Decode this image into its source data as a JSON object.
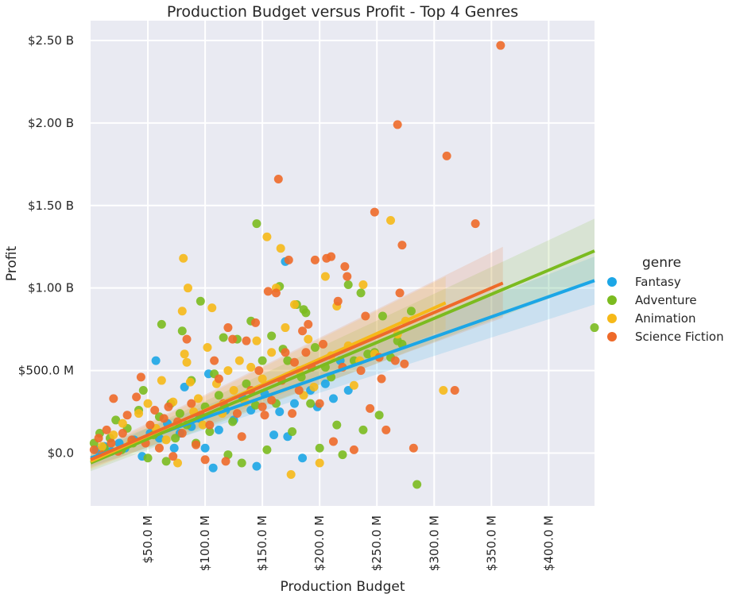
{
  "chart_data": {
    "type": "scatter",
    "title": "Production Budget versus Profit - Top 4 Genres",
    "xlabel": "Production Budget",
    "ylabel": "Profit",
    "xlim": [
      0,
      440
    ],
    "ylim": [
      -320,
      2620
    ],
    "x_unit": "millions USD",
    "y_unit": "millions USD",
    "grid": true,
    "background": "#e9eaf2",
    "x_ticks": [
      {
        "value": 50,
        "label": "$50.0 M"
      },
      {
        "value": 100,
        "label": "$100.0 M"
      },
      {
        "value": 150,
        "label": "$150.0 M"
      },
      {
        "value": 200,
        "label": "$200.0 M"
      },
      {
        "value": 250,
        "label": "$250.0 M"
      },
      {
        "value": 300,
        "label": "$300.0 M"
      },
      {
        "value": 350,
        "label": "$350.0 M"
      },
      {
        "value": 400,
        "label": "$400.0 M"
      }
    ],
    "y_ticks": [
      {
        "value": 0,
        "label": "$0.0"
      },
      {
        "value": 500,
        "label": "$500.0 M"
      },
      {
        "value": 1000,
        "label": "$1.00 B"
      },
      {
        "value": 1500,
        "label": "$1.50 B"
      },
      {
        "value": 2000,
        "label": "$2.00 B"
      },
      {
        "value": 2500,
        "label": "$2.50 B"
      }
    ],
    "legend": {
      "title": "genre",
      "position": "right"
    },
    "series": [
      {
        "name": "Fantasy",
        "color": "#1ca6e6",
        "points": [
          [
            5,
            20
          ],
          [
            12,
            40
          ],
          [
            18,
            10
          ],
          [
            25,
            60
          ],
          [
            30,
            30
          ],
          [
            38,
            80
          ],
          [
            45,
            -20
          ],
          [
            52,
            120
          ],
          [
            57,
            560
          ],
          [
            60,
            90
          ],
          [
            67,
            180
          ],
          [
            73,
            30
          ],
          [
            78,
            120
          ],
          [
            82,
            400
          ],
          [
            88,
            160
          ],
          [
            95,
            210
          ],
          [
            100,
            30
          ],
          [
            103,
            480
          ],
          [
            107,
            -90
          ],
          [
            112,
            140
          ],
          [
            118,
            260
          ],
          [
            125,
            200
          ],
          [
            133,
            330
          ],
          [
            140,
            260
          ],
          [
            145,
            -80
          ],
          [
            152,
            360
          ],
          [
            160,
            110
          ],
          [
            165,
            250
          ],
          [
            170,
            1160
          ],
          [
            172,
            100
          ],
          [
            178,
            300
          ],
          [
            185,
            -30
          ],
          [
            192,
            380
          ],
          [
            198,
            280
          ],
          [
            205,
            420
          ],
          [
            212,
            330
          ],
          [
            218,
            560
          ],
          [
            225,
            380
          ]
        ],
        "fit": {
          "x": [
            0,
            440
          ],
          "y": [
            -30,
            1045
          ]
        },
        "band": {
          "lower": [
            -80,
            900
          ],
          "upper": [
            20,
            1190
          ]
        }
      },
      {
        "name": "Adventure",
        "color": "#7bbb1f",
        "points": [
          [
            3,
            60
          ],
          [
            8,
            120
          ],
          [
            12,
            30
          ],
          [
            17,
            90
          ],
          [
            22,
            200
          ],
          [
            27,
            20
          ],
          [
            32,
            150
          ],
          [
            37,
            60
          ],
          [
            42,
            260
          ],
          [
            46,
            380
          ],
          [
            50,
            -30
          ],
          [
            55,
            110
          ],
          [
            60,
            220
          ],
          [
            62,
            780
          ],
          [
            66,
            -50
          ],
          [
            70,
            300
          ],
          [
            74,
            90
          ],
          [
            78,
            240
          ],
          [
            80,
            740
          ],
          [
            84,
            170
          ],
          [
            88,
            440
          ],
          [
            92,
            60
          ],
          [
            96,
            920
          ],
          [
            100,
            280
          ],
          [
            104,
            130
          ],
          [
            108,
            480
          ],
          [
            112,
            350
          ],
          [
            116,
            700
          ],
          [
            120,
            -10
          ],
          [
            124,
            190
          ],
          [
            128,
            690
          ],
          [
            132,
            -60
          ],
          [
            136,
            420
          ],
          [
            140,
            800
          ],
          [
            144,
            290
          ],
          [
            145,
            1390
          ],
          [
            150,
            560
          ],
          [
            154,
            20
          ],
          [
            158,
            710
          ],
          [
            162,
            300
          ],
          [
            165,
            1010
          ],
          [
            168,
            630
          ],
          [
            172,
            560
          ],
          [
            176,
            130
          ],
          [
            180,
            900
          ],
          [
            184,
            460
          ],
          [
            186,
            870
          ],
          [
            188,
            850
          ],
          [
            192,
            300
          ],
          [
            196,
            640
          ],
          [
            200,
            30
          ],
          [
            205,
            520
          ],
          [
            210,
            460
          ],
          [
            215,
            170
          ],
          [
            220,
            -10
          ],
          [
            225,
            1020
          ],
          [
            230,
            560
          ],
          [
            236,
            970
          ],
          [
            238,
            140
          ],
          [
            242,
            600
          ],
          [
            248,
            610
          ],
          [
            252,
            230
          ],
          [
            255,
            830
          ],
          [
            262,
            580
          ],
          [
            268,
            680
          ],
          [
            272,
            660
          ],
          [
            280,
            860
          ],
          [
            285,
            -190
          ],
          [
            440,
            760
          ]
        ],
        "fit": {
          "x": [
            0,
            440
          ],
          "y": [
            -60,
            1225
          ]
        },
        "band": {
          "lower": [
            -110,
            1040
          ],
          "upper": [
            -10,
            1420
          ]
        }
      },
      {
        "name": "Animation",
        "color": "#f6b918",
        "points": [
          [
            10,
            40
          ],
          [
            20,
            110
          ],
          [
            28,
            180
          ],
          [
            35,
            60
          ],
          [
            42,
            240
          ],
          [
            50,
            300
          ],
          [
            57,
            150
          ],
          [
            62,
            440
          ],
          [
            66,
            80
          ],
          [
            72,
            310
          ],
          [
            76,
            -60
          ],
          [
            80,
            860
          ],
          [
            81,
            1180
          ],
          [
            82,
            600
          ],
          [
            84,
            550
          ],
          [
            85,
            1000
          ],
          [
            87,
            430
          ],
          [
            90,
            250
          ],
          [
            94,
            330
          ],
          [
            98,
            170
          ],
          [
            102,
            640
          ],
          [
            106,
            880
          ],
          [
            110,
            420
          ],
          [
            115,
            240
          ],
          [
            120,
            500
          ],
          [
            125,
            380
          ],
          [
            130,
            560
          ],
          [
            135,
            310
          ],
          [
            140,
            520
          ],
          [
            145,
            680
          ],
          [
            150,
            450
          ],
          [
            154,
            1310
          ],
          [
            158,
            610
          ],
          [
            162,
            1000
          ],
          [
            166,
            1240
          ],
          [
            170,
            760
          ],
          [
            175,
            -130
          ],
          [
            178,
            900
          ],
          [
            182,
            500
          ],
          [
            186,
            350
          ],
          [
            190,
            690
          ],
          [
            195,
            400
          ],
          [
            200,
            -60
          ],
          [
            205,
            1070
          ],
          [
            210,
            590
          ],
          [
            215,
            890
          ],
          [
            225,
            650
          ],
          [
            230,
            410
          ],
          [
            235,
            560
          ],
          [
            238,
            1020
          ],
          [
            248,
            600
          ],
          [
            262,
            1410
          ],
          [
            268,
            720
          ],
          [
            275,
            800
          ],
          [
            308,
            380
          ]
        ],
        "fit": {
          "x": [
            0,
            310
          ],
          "y": [
            -50,
            910
          ]
        },
        "band": {
          "lower": [
            -100,
            750
          ],
          "upper": [
            0,
            1070
          ]
        }
      },
      {
        "name": "Science Fiction",
        "color": "#ee6a29",
        "points": [
          [
            3,
            20
          ],
          [
            7,
            90
          ],
          [
            10,
            -10
          ],
          [
            14,
            140
          ],
          [
            18,
            60
          ],
          [
            20,
            330
          ],
          [
            24,
            10
          ],
          [
            28,
            120
          ],
          [
            32,
            230
          ],
          [
            36,
            80
          ],
          [
            40,
            340
          ],
          [
            44,
            460
          ],
          [
            48,
            60
          ],
          [
            52,
            170
          ],
          [
            56,
            260
          ],
          [
            60,
            30
          ],
          [
            64,
            210
          ],
          [
            68,
            280
          ],
          [
            72,
            -20
          ],
          [
            76,
            190
          ],
          [
            80,
            120
          ],
          [
            84,
            690
          ],
          [
            88,
            300
          ],
          [
            92,
            50
          ],
          [
            96,
            230
          ],
          [
            100,
            -40
          ],
          [
            104,
            170
          ],
          [
            108,
            560
          ],
          [
            112,
            450
          ],
          [
            116,
            300
          ],
          [
            118,
            -50
          ],
          [
            120,
            760
          ],
          [
            124,
            690
          ],
          [
            128,
            240
          ],
          [
            132,
            100
          ],
          [
            136,
            680
          ],
          [
            140,
            380
          ],
          [
            144,
            790
          ],
          [
            147,
            500
          ],
          [
            150,
            280
          ],
          [
            152,
            230
          ],
          [
            155,
            980
          ],
          [
            158,
            320
          ],
          [
            162,
            970
          ],
          [
            164,
            1660
          ],
          [
            167,
            440
          ],
          [
            170,
            610
          ],
          [
            173,
            1170
          ],
          [
            176,
            240
          ],
          [
            178,
            550
          ],
          [
            182,
            380
          ],
          [
            185,
            740
          ],
          [
            188,
            610
          ],
          [
            190,
            780
          ],
          [
            193,
            520
          ],
          [
            196,
            1170
          ],
          [
            200,
            300
          ],
          [
            203,
            660
          ],
          [
            206,
            1180
          ],
          [
            210,
            1190
          ],
          [
            212,
            70
          ],
          [
            216,
            920
          ],
          [
            220,
            520
          ],
          [
            222,
            1130
          ],
          [
            224,
            1070
          ],
          [
            230,
            20
          ],
          [
            236,
            500
          ],
          [
            240,
            830
          ],
          [
            244,
            270
          ],
          [
            248,
            1460
          ],
          [
            252,
            580
          ],
          [
            254,
            450
          ],
          [
            258,
            140
          ],
          [
            266,
            560
          ],
          [
            268,
            1990
          ],
          [
            270,
            970
          ],
          [
            272,
            1260
          ],
          [
            274,
            540
          ],
          [
            282,
            30
          ],
          [
            311,
            1800
          ],
          [
            318,
            380
          ],
          [
            336,
            1390
          ],
          [
            358,
            2470
          ]
        ],
        "fit": {
          "x": [
            0,
            360
          ],
          "y": [
            -40,
            1030
          ]
        },
        "band": {
          "lower": [
            -90,
            820
          ],
          "upper": [
            10,
            1250
          ]
        }
      }
    ]
  }
}
